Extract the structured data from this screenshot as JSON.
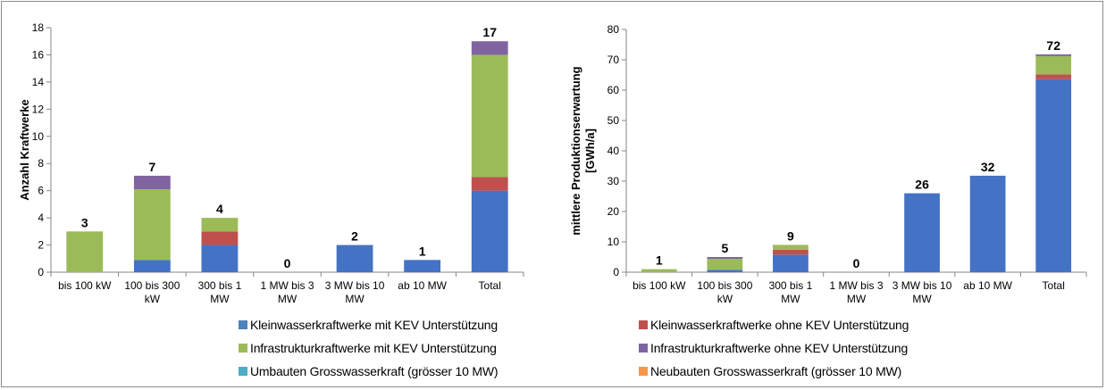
{
  "chart_data": [
    {
      "type": "bar",
      "stacked": true,
      "ylabel": "Anzahl Kraftwerke",
      "ylim": [
        0,
        18
      ],
      "ytick_step": 2,
      "yticks": [
        "0",
        "2",
        "4",
        "6",
        "8",
        "10",
        "12",
        "14",
        "16",
        "18"
      ],
      "categories": [
        "bis 100 kW",
        "100 bis 300 kW",
        "300 bis 1 MW",
        "1 MW bis 3 MW",
        "3 MW bis 10 MW",
        "ab 10 MW",
        "Total"
      ],
      "category_lines": [
        [
          "bis 100 kW"
        ],
        [
          "100  bis 300",
          "kW"
        ],
        [
          "300  bis 1",
          "MW"
        ],
        [
          "1 MW bis 3",
          "MW"
        ],
        [
          "3 MW bis 10",
          "MW"
        ],
        [
          "ab 10 MW"
        ],
        [
          "Total"
        ]
      ],
      "series": [
        {
          "name": "Kleinwasserkraftwerke mit KEV Unterstützung",
          "values": [
            0,
            0.9,
            2,
            0,
            2,
            0.9,
            6
          ]
        },
        {
          "name": "Kleinwasserkraftwerke ohne KEV Unterstützung",
          "values": [
            0,
            0,
            1,
            0,
            0,
            0,
            1
          ]
        },
        {
          "name": "Infrastrukturkraftwerke mit KEV Unterstützung",
          "values": [
            3,
            5.2,
            1,
            0,
            0,
            0,
            9
          ]
        },
        {
          "name": "Infrastrukturkraftwerke ohne KEV Unterstützung",
          "values": [
            0,
            1,
            0,
            0,
            0,
            0,
            1
          ]
        },
        {
          "name": "Umbauten Grosswasserkraft (grösser 10 MW)",
          "values": [
            0,
            0,
            0,
            0,
            0,
            0,
            0
          ]
        },
        {
          "name": "Neubauten Grosswasserkraft (grösser 10 MW)",
          "values": [
            0,
            0,
            0,
            0,
            0,
            0,
            0
          ]
        }
      ],
      "total_labels": [
        "3",
        "7",
        "4",
        "0",
        "2",
        "1",
        "17"
      ],
      "grid": false
    },
    {
      "type": "bar",
      "stacked": true,
      "ylabel": "mittlere Produktionserwartung [GWh/a]",
      "ylabel_lines": [
        "mittlere Produktionserwartung",
        "[GWh/a]"
      ],
      "ylim": [
        0,
        80
      ],
      "ytick_step": 10,
      "yticks": [
        "0",
        "10",
        "20",
        "30",
        "40",
        "50",
        "60",
        "70",
        "80"
      ],
      "categories": [
        "bis 100 kW",
        "100 bis 300 kW",
        "300 bis 1 MW",
        "1 MW bis 3 MW",
        "3 MW bis 10 MW",
        "ab 10 MW",
        "Total"
      ],
      "category_lines": [
        [
          "bis 100 kW"
        ],
        [
          "100  bis 300",
          "kW"
        ],
        [
          "300  bis 1",
          "MW"
        ],
        [
          "1 MW bis 3",
          "MW"
        ],
        [
          "3 MW bis 10",
          "MW"
        ],
        [
          "ab 10 MW"
        ],
        [
          "Total"
        ]
      ],
      "series": [
        {
          "name": "Kleinwasserkraftwerke mit KEV Unterstützung",
          "values": [
            0,
            0.8,
            5.8,
            0,
            26,
            31.8,
            63.6
          ]
        },
        {
          "name": "Kleinwasserkraftwerke ohne KEV Unterstützung",
          "values": [
            0,
            0,
            1.6,
            0,
            0,
            0,
            1.6
          ]
        },
        {
          "name": "Infrastrukturkraftwerke mit KEV Unterstützung",
          "values": [
            1,
            3.6,
            1.6,
            0,
            0,
            0,
            6.0
          ]
        },
        {
          "name": "Infrastrukturkraftwerke ohne KEV Unterstützung",
          "values": [
            0,
            0.6,
            0,
            0,
            0,
            0,
            0.6
          ]
        },
        {
          "name": "Umbauten Grosswasserkraft (grösser 10 MW)",
          "values": [
            0,
            0,
            0,
            0,
            0,
            0,
            0
          ]
        },
        {
          "name": "Neubauten Grosswasserkraft (grösser 10 MW)",
          "values": [
            0,
            0,
            0,
            0,
            0,
            0,
            0
          ]
        }
      ],
      "total_labels": [
        "1",
        "5",
        "9",
        "0",
        "26",
        "32",
        "72"
      ],
      "grid": false
    }
  ],
  "colors": [
    "#4472c4",
    "#c0504d",
    "#9bbb59",
    "#8064a2",
    "#4bacc6",
    "#f79646"
  ],
  "legend": {
    "placement": "bottom",
    "items": [
      {
        "label": "Kleinwasserkraftwerke mit KEV Unterstützung",
        "color": "#4f81bd"
      },
      {
        "label": "Kleinwasserkraftwerke ohne KEV Unterstützung",
        "color": "#c0504d"
      },
      {
        "label": "Infrastrukturkraftwerke mit KEV Unterstützung",
        "color": "#9bbb59"
      },
      {
        "label": "Infrastrukturkraftwerke ohne KEV Unterstützung",
        "color": "#8064a2"
      },
      {
        "label": "Umbauten Grosswasserkraft (grösser 10 MW)",
        "color": "#4bacc6"
      },
      {
        "label": "Neubauten Grosswasserkraft (grösser 10 MW)",
        "color": "#f79646"
      }
    ]
  }
}
